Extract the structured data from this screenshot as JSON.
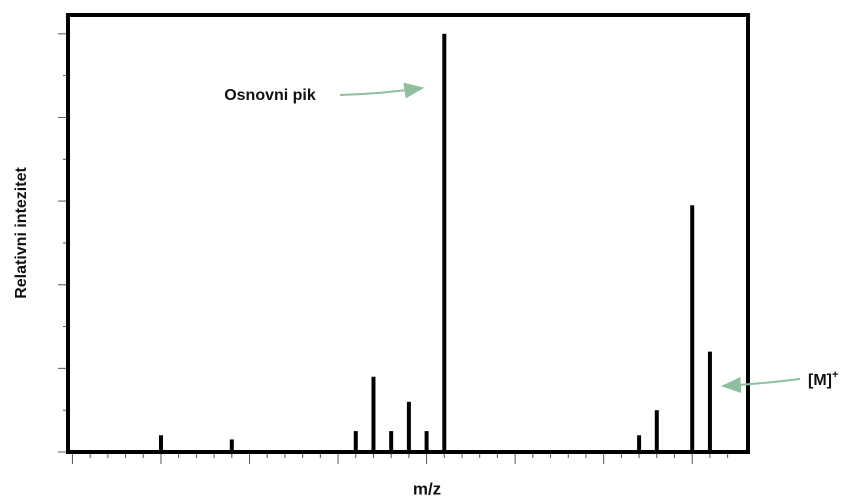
{
  "chart_data": {
    "type": "bar",
    "x_label": "m/z",
    "y_label": "Relativni intezitet",
    "x": [
      10,
      18,
      32,
      34,
      36,
      38,
      40,
      42,
      64,
      66,
      70,
      72
    ],
    "values": [
      4,
      3,
      5,
      18,
      5,
      12,
      5,
      100,
      4,
      10,
      59,
      24
    ],
    "color": "#000000",
    "xlim": [
      -0.5,
      76.3
    ],
    "ylim": [
      0,
      104.5
    ],
    "xticks": [
      0,
      2,
      4,
      6,
      8,
      10,
      12,
      14,
      16,
      18,
      20,
      22,
      24,
      26,
      28,
      30,
      32,
      34,
      36,
      38,
      40,
      42,
      44,
      46,
      48,
      50,
      52,
      54,
      56,
      58,
      60,
      62,
      64,
      66,
      68,
      70,
      72,
      74
    ],
    "yticks": [
      0,
      10,
      20,
      30,
      40,
      50,
      60,
      70,
      80,
      90,
      100
    ],
    "annotations": [
      {
        "text": "Osnovni pik",
        "points_to": 7
      },
      {
        "text": "[M]",
        "superscript": "+",
        "points_to": 11
      }
    ]
  }
}
